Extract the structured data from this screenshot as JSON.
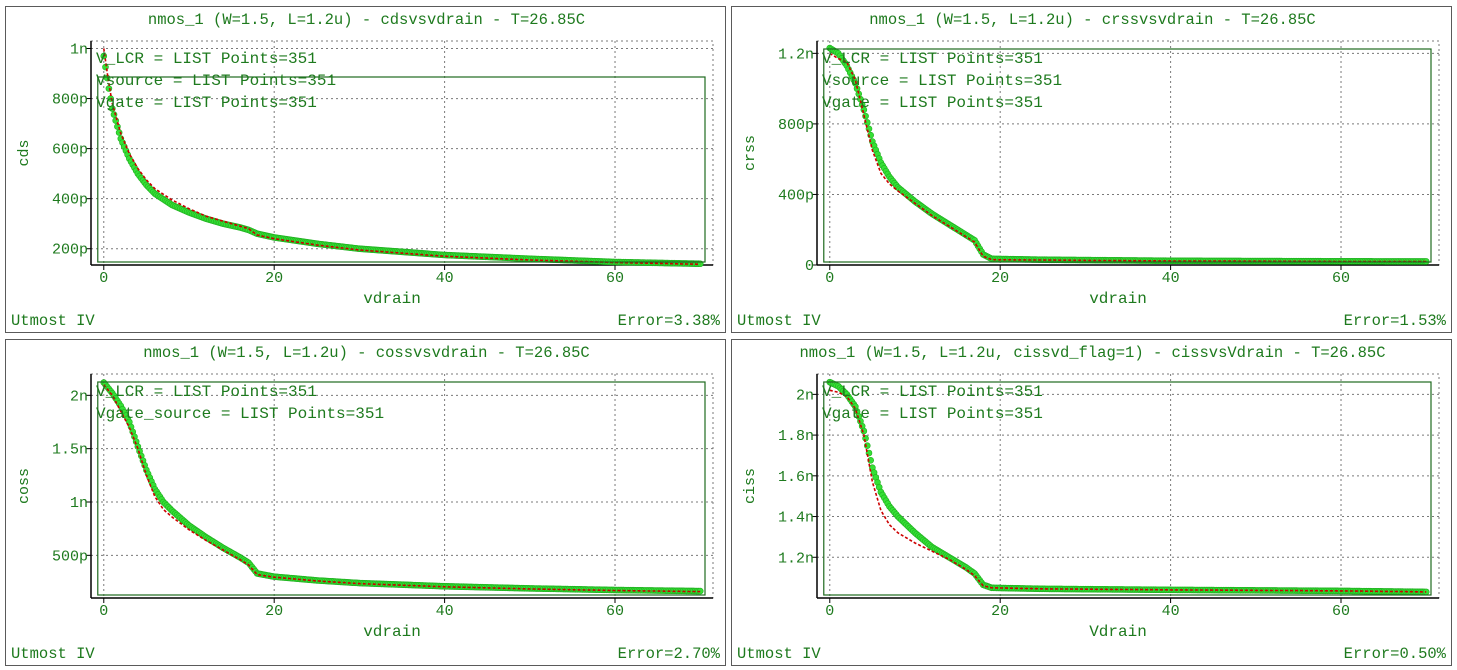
{
  "colors": {
    "text": "#1e7a1e",
    "measured": "#35e035",
    "measured_edge": "#1fb01f",
    "simulated": "#cc0000",
    "legend_box": "#1e6a1e",
    "grid": "#7a7a7a",
    "axis": "#000000"
  },
  "chart_data": [
    {
      "type": "scatter",
      "title": "nmos_1 (W=1.5, L=1.2u) - cdsvsvdrain - T=26.85C",
      "xlabel": "vdrain",
      "ylabel": "cds",
      "xlim": [
        -1.5,
        71.5
      ],
      "ylim": [
        1.35e-10,
        1.03e-09
      ],
      "xticks": [
        0,
        20,
        40,
        60
      ],
      "xtick_labels": [
        "0",
        "20",
        "40",
        "60"
      ],
      "yticks": [
        2e-10,
        4e-10,
        6e-10,
        8e-10,
        1e-09
      ],
      "ytick_labels": [
        "200p",
        "400p",
        "600p",
        "800p",
        "1n"
      ],
      "legend": [
        "V_LCR = LIST Points=351",
        "Vsource = LIST Points=351",
        "Vgate = LIST Points=351"
      ],
      "legend_placement": "inside plot, top-left, framed",
      "grid": true,
      "footer_left": "Utmost IV",
      "footer_right": "Error=3.38%",
      "series": [
        {
          "x": [
            0,
            0.5,
            1,
            2,
            3,
            4,
            5,
            6,
            8,
            10,
            12,
            14,
            16,
            17,
            18,
            20,
            25,
            30,
            40,
            50,
            60,
            70
          ],
          "y": [
            1e-09,
            8.8e-10,
            7.8e-10,
            6.6e-10,
            5.8e-10,
            5.2e-10,
            4.75e-10,
            4.4e-10,
            3.95e-10,
            3.6e-10,
            3.3e-10,
            3.1e-10,
            2.9e-10,
            2.8e-10,
            2.55e-10,
            2.4e-10,
            2.15e-10,
            1.95e-10,
            1.7e-10,
            1.55e-10,
            1.45e-10,
            1.38e-10
          ]
        },
        {
          "x": [
            0,
            0.5,
            1,
            2,
            3,
            4,
            5,
            6,
            8,
            10,
            12,
            14,
            16,
            17,
            18,
            20,
            25,
            30,
            40,
            50,
            60,
            70
          ],
          "y": [
            9.7e-10,
            8.6e-10,
            7.6e-10,
            6.4e-10,
            5.6e-10,
            5e-10,
            4.55e-10,
            4.2e-10,
            3.75e-10,
            3.45e-10,
            3.2e-10,
            3e-10,
            2.85e-10,
            2.75e-10,
            2.6e-10,
            2.45e-10,
            2.2e-10,
            2e-10,
            1.75e-10,
            1.6e-10,
            1.47e-10,
            1.4e-10
          ]
        }
      ]
    },
    {
      "type": "scatter",
      "title": "nmos_1 (W=1.5, L=1.2u) - crssvsvdrain - T=26.85C",
      "xlabel": "vdrain",
      "ylabel": "crss",
      "xlim": [
        -1.5,
        71.5
      ],
      "ylim": [
        0,
        1.27e-09
      ],
      "xticks": [
        0,
        20,
        40,
        60
      ],
      "xtick_labels": [
        "0",
        "20",
        "40",
        "60"
      ],
      "yticks": [
        0,
        4e-10,
        8e-10,
        1.2e-09
      ],
      "ytick_labels": [
        "0",
        "400p",
        "800p",
        "1.2n"
      ],
      "legend": [
        "V_LCR = LIST Points=351",
        "Vsource = LIST Points=351",
        "Vgate = LIST Points=351"
      ],
      "legend_placement": "inside plot, top-left, framed",
      "grid": true,
      "footer_left": "Utmost IV",
      "footer_right": "Error=1.53%",
      "series": [
        {
          "x": [
            0,
            1,
            2,
            3,
            4,
            5,
            6,
            7,
            8,
            10,
            12,
            14,
            16,
            17,
            18,
            19,
            25,
            40,
            60,
            70
          ],
          "y": [
            1.2e-09,
            1.17e-09,
            1.15e-09,
            1.05e-09,
            8.5e-10,
            6.5e-10,
            5.2e-10,
            4.6e-10,
            4.2e-10,
            3.5e-10,
            2.8e-10,
            2.2e-10,
            1.6e-10,
            1.3e-10,
            5e-11,
            3e-11,
            2.8e-11,
            2.3e-11,
            2e-11,
            1.9e-11
          ]
        },
        {
          "x": [
            0,
            1,
            2,
            3,
            4,
            5,
            6,
            7,
            8,
            10,
            12,
            14,
            16,
            17,
            18,
            19,
            25,
            40,
            60,
            70
          ],
          "y": [
            1.23e-09,
            1.2e-09,
            1.13e-09,
            1.03e-09,
            8.8e-10,
            7e-10,
            5.8e-10,
            5e-10,
            4.4e-10,
            3.6e-10,
            2.9e-10,
            2.3e-10,
            1.7e-10,
            1.4e-10,
            6e-11,
            3.5e-11,
            3e-11,
            2.4e-11,
            2.1e-11,
            2e-11
          ]
        }
      ]
    },
    {
      "type": "scatter",
      "title": "nmos_1 (W=1.5, L=1.2u) - cossvsvdrain - T=26.85C",
      "xlabel": "vdrain",
      "ylabel": "coss",
      "xlim": [
        -1.5,
        71.5
      ],
      "ylim": [
        1e-10,
        2.2e-09
      ],
      "xticks": [
        0,
        20,
        40,
        60
      ],
      "xtick_labels": [
        "0",
        "20",
        "40",
        "60"
      ],
      "yticks": [
        5e-10,
        1e-09,
        1.5e-09,
        2e-09
      ],
      "ytick_labels": [
        "500p",
        "1n",
        "1.5n",
        "2n"
      ],
      "legend": [
        "V_LCR = LIST Points=351",
        "Vgate_source = LIST Points=351"
      ],
      "legend_placement": "inside plot, top-left, framed",
      "grid": true,
      "footer_left": "Utmost IV",
      "footer_right": "Error=2.70%",
      "series": [
        {
          "x": [
            0,
            1,
            2,
            3,
            4,
            5,
            6,
            7,
            8,
            10,
            12,
            14,
            16,
            17,
            18,
            20,
            25,
            30,
            40,
            50,
            60,
            70
          ],
          "y": [
            2.1e-09,
            2e-09,
            1.85e-09,
            1.7e-09,
            1.5e-09,
            1.25e-09,
            1.05e-09,
            9.3e-10,
            8.6e-10,
            7.4e-10,
            6.4e-10,
            5.5e-10,
            4.6e-10,
            4.1e-10,
            3.2e-10,
            2.95e-10,
            2.6e-10,
            2.35e-10,
            2.05e-10,
            1.85e-10,
            1.7e-10,
            1.6e-10
          ]
        },
        {
          "x": [
            0,
            1,
            2,
            3,
            4,
            5,
            6,
            7,
            8,
            10,
            12,
            14,
            16,
            17,
            18,
            20,
            25,
            30,
            40,
            50,
            60,
            70
          ],
          "y": [
            2.12e-09,
            2.02e-09,
            1.9e-09,
            1.75e-09,
            1.52e-09,
            1.3e-09,
            1.12e-09,
            1e-09,
            9.2e-10,
            7.8e-10,
            6.7e-10,
            5.7e-10,
            4.8e-10,
            4.3e-10,
            3.3e-10,
            3e-10,
            2.65e-10,
            2.4e-10,
            2.1e-10,
            1.9e-10,
            1.75e-10,
            1.65e-10
          ]
        }
      ]
    },
    {
      "type": "scatter",
      "title": "nmos_1 (W=1.5, L=1.2u, cissvd_flag=1) - cissvsVdrain - T=26.85C",
      "xlabel": "Vdrain",
      "ylabel": "ciss",
      "xlim": [
        -1.5,
        71.5
      ],
      "ylim": [
        1e-09,
        2.1e-09
      ],
      "xticks": [
        0,
        20,
        40,
        60
      ],
      "xtick_labels": [
        "0",
        "20",
        "40",
        "60"
      ],
      "yticks": [
        1.2e-09,
        1.4e-09,
        1.6e-09,
        1.8e-09,
        2e-09
      ],
      "ytick_labels": [
        "1.2n",
        "1.4n",
        "1.6n",
        "1.8n",
        "2n"
      ],
      "legend": [
        "V_LCR = LIST Points=351",
        "Vgate = LIST Points=351"
      ],
      "legend_placement": "inside plot, top-left, framed",
      "grid": true,
      "footer_left": "Utmost IV",
      "footer_right": "Error=0.50%",
      "series": [
        {
          "x": [
            0,
            1,
            2,
            3,
            4,
            5,
            6,
            7,
            8,
            10,
            12,
            14,
            16,
            17,
            18,
            19,
            25,
            40,
            60,
            70
          ],
          "y": [
            2.02e-09,
            2.01e-09,
            1.99e-09,
            1.93e-09,
            1.8e-09,
            1.57e-09,
            1.43e-09,
            1.36e-09,
            1.32e-09,
            1.27e-09,
            1.23e-09,
            1.19e-09,
            1.14e-09,
            1.11e-09,
            1.06e-09,
            1.05e-09,
            1.045e-09,
            1.04e-09,
            1.035e-09,
            1.03e-09
          ]
        },
        {
          "x": [
            0,
            1,
            2,
            3,
            4,
            5,
            6,
            7,
            8,
            10,
            12,
            14,
            16,
            17,
            18,
            19,
            25,
            40,
            60,
            70
          ],
          "y": [
            2.06e-09,
            2.04e-09,
            2e-09,
            1.94e-09,
            1.82e-09,
            1.64e-09,
            1.52e-09,
            1.45e-09,
            1.4e-09,
            1.32e-09,
            1.25e-09,
            1.2e-09,
            1.15e-09,
            1.12e-09,
            1.065e-09,
            1.05e-09,
            1.045e-09,
            1.04e-09,
            1.035e-09,
            1.03e-09
          ]
        }
      ]
    }
  ]
}
